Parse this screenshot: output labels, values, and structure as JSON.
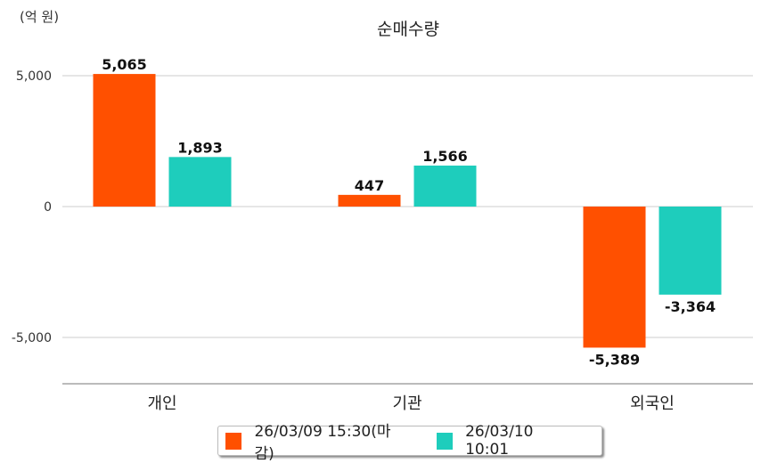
{
  "chart_data": {
    "type": "bar",
    "title": "순매수량",
    "unit_label": "(억 원)",
    "xlabel": "",
    "ylabel": "(억 원)",
    "categories": [
      "개인",
      "기관",
      "외국인"
    ],
    "series": [
      {
        "name": "26/03/09 15:30(마감)",
        "color": "#FF5000",
        "values": [
          5065,
          447,
          -5389
        ],
        "labels": [
          "5,065",
          "447",
          "-5,389"
        ]
      },
      {
        "name": "26/03/10 10:01",
        "color": "#1ECDBC",
        "values": [
          1893,
          1566,
          -3364
        ],
        "labels": [
          "1,893",
          "1,566",
          "-3,364"
        ]
      }
    ],
    "yticks": [
      5000,
      0,
      -5000
    ],
    "ytick_labels": [
      "5,000",
      "0",
      "-5,000"
    ],
    "ylim": [
      -6770,
      6500
    ],
    "grid": true,
    "legend_position": "bottom"
  }
}
